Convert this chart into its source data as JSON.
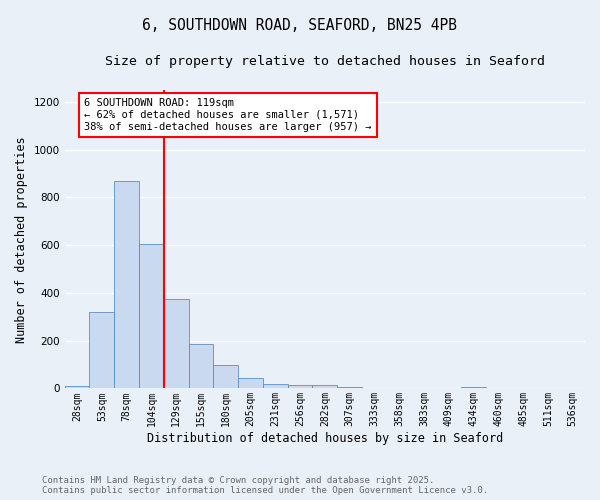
{
  "title": "6, SOUTHDOWN ROAD, SEAFORD, BN25 4PB",
  "subtitle": "Size of property relative to detached houses in Seaford",
  "xlabel": "Distribution of detached houses by size in Seaford",
  "ylabel": "Number of detached properties",
  "bar_values": [
    10,
    320,
    870,
    605,
    375,
    185,
    100,
    45,
    20,
    15,
    15,
    5,
    0,
    0,
    0,
    0,
    8,
    0,
    0,
    0,
    0
  ],
  "bar_labels": [
    "28sqm",
    "53sqm",
    "78sqm",
    "104sqm",
    "129sqm",
    "155sqm",
    "180sqm",
    "205sqm",
    "231sqm",
    "256sqm",
    "282sqm",
    "307sqm",
    "333sqm",
    "358sqm",
    "383sqm",
    "409sqm",
    "434sqm",
    "460sqm",
    "485sqm",
    "511sqm",
    "536sqm"
  ],
  "bar_color": "#c9d9ef",
  "bar_edge_color": "#5b8ec4",
  "vline_color": "red",
  "vline_pos": 4.5,
  "annotation_text": "6 SOUTHDOWN ROAD: 119sqm\n← 62% of detached houses are smaller (1,571)\n38% of semi-detached houses are larger (957) →",
  "annotation_box_color": "white",
  "annotation_box_edge": "red",
  "ylim": [
    0,
    1250
  ],
  "yticks": [
    0,
    200,
    400,
    600,
    800,
    1000,
    1200
  ],
  "footer_line1": "Contains HM Land Registry data © Crown copyright and database right 2025.",
  "footer_line2": "Contains public sector information licensed under the Open Government Licence v3.0.",
  "background_color": "#eaf0f8",
  "grid_color": "white",
  "title_fontsize": 10.5,
  "subtitle_fontsize": 9.5,
  "ylabel_fontsize": 8.5,
  "xlabel_fontsize": 8.5,
  "tick_fontsize": 7,
  "annot_fontsize": 7.5,
  "footer_fontsize": 6.5
}
